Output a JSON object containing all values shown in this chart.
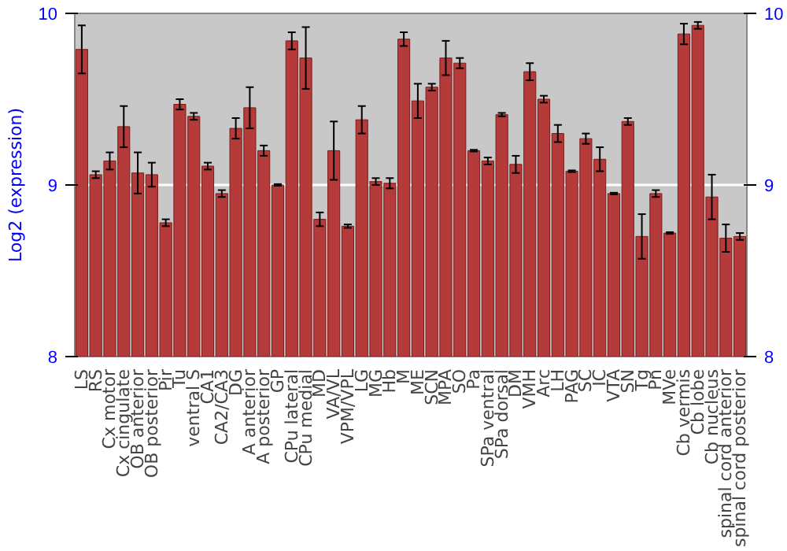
{
  "chart_data": {
    "type": "bar",
    "ylabel": "Log2 (expression)",
    "categories": [
      "LS",
      "RS",
      "Cx motor",
      "Cx cingulate",
      "OB anterior",
      "OB posterior",
      "Pir",
      "Tu",
      "ventral S",
      "CA1",
      "CA2/CA3",
      "DG",
      "A anterior",
      "A posterior",
      "GP",
      "CPu lateral",
      "CPu medial",
      "MD",
      "VA/VL",
      "VPM/VPL",
      "LG",
      "MG",
      "Hb",
      "M",
      "ME",
      "SCN",
      "MPA",
      "SO",
      "Pa",
      "SPa ventral",
      "SPa dorsal",
      "DM",
      "VMH",
      "Arc",
      "LH",
      "PAG",
      "SC",
      "IC",
      "VTA",
      "SN",
      "Tg",
      "Pn",
      "MVe",
      "Cb vermis",
      "Cb lobe",
      "Cb nucleus",
      "spinal cord anterior",
      "spinal cord posterior"
    ],
    "values": [
      9.79,
      9.06,
      9.14,
      9.34,
      9.07,
      9.06,
      8.78,
      9.47,
      9.4,
      9.11,
      8.95,
      9.33,
      9.45,
      9.2,
      9.0,
      9.84,
      9.74,
      8.8,
      9.2,
      8.76,
      9.38,
      9.02,
      9.01,
      9.85,
      9.49,
      9.57,
      9.74,
      9.71,
      9.2,
      9.14,
      9.41,
      9.12,
      9.66,
      9.5,
      9.3,
      9.08,
      9.27,
      9.15,
      8.95,
      9.37,
      8.7,
      8.95,
      8.72,
      9.88,
      9.93,
      8.93,
      8.69,
      8.7
    ],
    "errors": [
      0.14,
      0.02,
      0.05,
      0.12,
      0.12,
      0.07,
      0.02,
      0.03,
      0.02,
      0.02,
      0.02,
      0.06,
      0.12,
      0.03,
      0.005,
      0.05,
      0.18,
      0.04,
      0.17,
      0.01,
      0.08,
      0.02,
      0.03,
      0.04,
      0.1,
      0.02,
      0.1,
      0.03,
      0.005,
      0.02,
      0.01,
      0.05,
      0.05,
      0.02,
      0.05,
      0.005,
      0.03,
      0.07,
      0.005,
      0.02,
      0.13,
      0.02,
      0.005,
      0.06,
      0.02,
      0.13,
      0.08,
      0.02
    ],
    "color": "#b53a3a",
    "ylim": [
      8,
      10
    ],
    "yticks": [
      8,
      9,
      10
    ],
    "y2lim": [
      8,
      10
    ],
    "y2ticks": [
      8,
      9,
      10
    ],
    "grid": "y"
  }
}
